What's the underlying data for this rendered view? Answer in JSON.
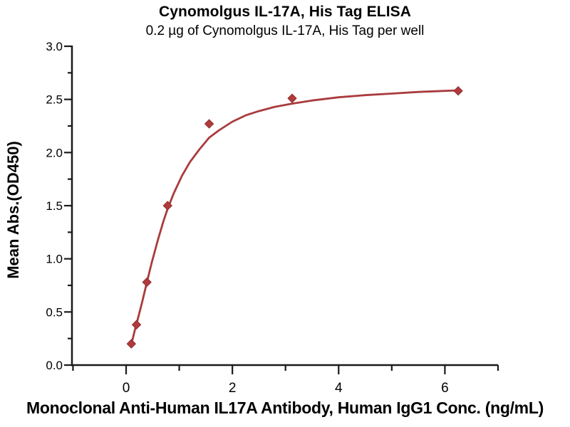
{
  "chart_data": {
    "type": "scatter",
    "title": "Cynomolgus IL-17A, His Tag ELISA",
    "subtitle": "0.2 µg of Cynomolgus IL-17A, His Tag per well",
    "xlabel": "Monoclonal Anti-Human IL17A Antibody, Human IgG1 Conc. (ng/mL)",
    "ylabel": "Mean Abs.(OD450)",
    "xlim": [
      -1,
      7
    ],
    "ylim": [
      0,
      3
    ],
    "x_major_ticks": [
      0,
      2,
      4,
      6
    ],
    "x_minor_ticks": [
      -1,
      1,
      3,
      5,
      7
    ],
    "y_major_ticks": [
      0,
      0.5,
      1,
      1.5,
      2,
      2.5,
      3
    ],
    "y_minor_step": 0.25,
    "grid": false,
    "legend": "none",
    "series": [
      {
        "name": "measured data points",
        "type": "scatter",
        "marker": "diamond",
        "x": [
          0.098,
          0.195,
          0.391,
          0.781,
          1.563,
          3.125,
          6.25
        ],
        "y": [
          0.2,
          0.38,
          0.78,
          1.5,
          2.27,
          2.51,
          2.58
        ]
      },
      {
        "name": "4PL fit curve",
        "type": "line",
        "x": [
          0.098,
          0.13,
          0.165,
          0.195,
          0.25,
          0.3,
          0.391,
          0.48,
          0.6,
          0.7,
          0.781,
          0.9,
          1.05,
          1.2,
          1.38,
          1.563,
          1.75,
          2.0,
          2.25,
          2.5,
          2.8,
          3.125,
          3.5,
          4.0,
          4.5,
          5.0,
          5.5,
          6.0,
          6.25
        ],
        "y": [
          0.2,
          0.26,
          0.33,
          0.385,
          0.49,
          0.59,
          0.78,
          0.96,
          1.18,
          1.35,
          1.47,
          1.62,
          1.78,
          1.91,
          2.03,
          2.14,
          2.21,
          2.29,
          2.35,
          2.39,
          2.43,
          2.46,
          2.49,
          2.52,
          2.54,
          2.555,
          2.57,
          2.58,
          2.585
        ]
      }
    ],
    "colors": {
      "curve": "#A93B3D",
      "marker_fill": "#B23A3C",
      "marker_edge": "#8E2E30",
      "axis": "#1A1A1A",
      "text": "#000000",
      "background": "#FFFFFF"
    }
  }
}
